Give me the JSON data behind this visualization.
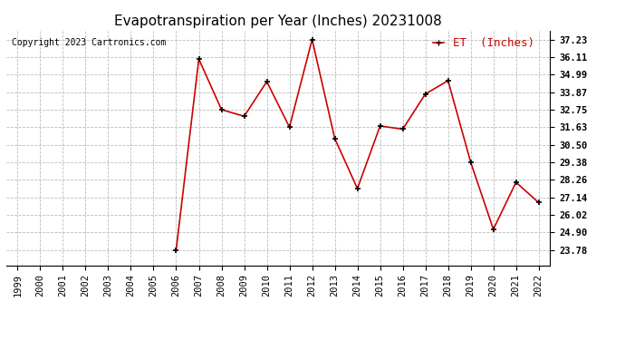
{
  "title": "Evapotranspiration per Year (Inches) 20231008",
  "copyright": "Copyright 2023 Cartronics.com",
  "legend_label": "ET  (Inches)",
  "data_years": [
    2006,
    2007,
    2008,
    2009,
    2010,
    2011,
    2012,
    2013,
    2014,
    2015,
    2016,
    2017,
    2018,
    2019,
    2020,
    2021,
    2022
  ],
  "data_values": [
    23.78,
    35.98,
    32.75,
    32.32,
    34.54,
    31.63,
    37.23,
    30.9,
    27.7,
    31.7,
    31.5,
    33.75,
    34.6,
    29.38,
    25.1,
    28.1,
    26.8
  ],
  "line_color": "#cc0000",
  "marker_color": "#000000",
  "grid_color": "#bbbbbb",
  "background_color": "#ffffff",
  "yticks": [
    23.78,
    24.9,
    26.02,
    27.14,
    28.26,
    29.38,
    30.5,
    31.63,
    32.75,
    33.87,
    34.99,
    36.11,
    37.23
  ],
  "ylim_low": 22.8,
  "ylim_high": 37.8,
  "xlim_start": 1998.5,
  "xlim_end": 2022.5,
  "title_fontsize": 11,
  "copyright_fontsize": 7,
  "legend_fontsize": 9,
  "tick_fontsize": 7.5
}
